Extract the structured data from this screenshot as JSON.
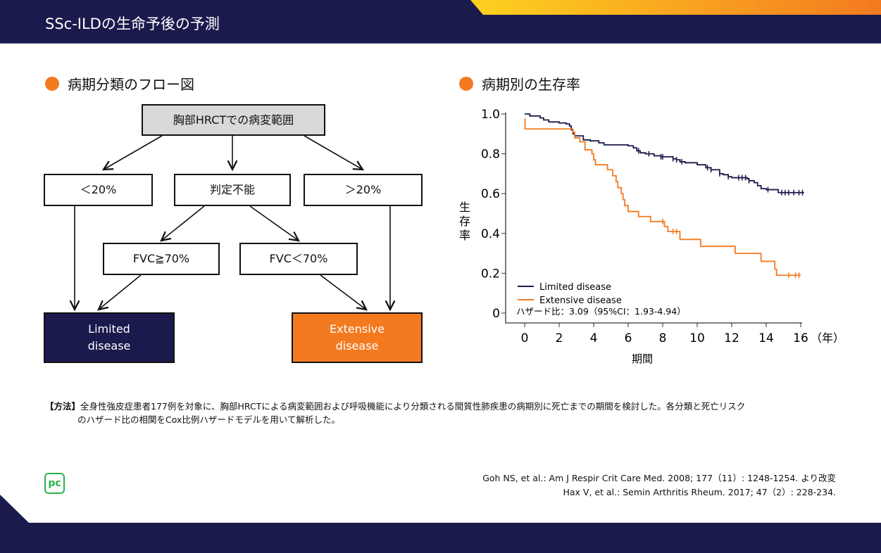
{
  "header": {
    "title": "SSc-ILDの生命予後の予測"
  },
  "flow": {
    "heading": "病期分類のフロー図",
    "top": "胸部HRCTでの病変範囲",
    "lt20": "＜20%",
    "indet": "判定不能",
    "gt20": "＞20%",
    "fvc_ge70": "FVC≧70%",
    "fvc_lt70": "FVC＜70%",
    "limited": "Limited disease",
    "extensive": "Extensive disease"
  },
  "chart_heading": "病期別の生存率",
  "chart_data": {
    "type": "line",
    "step": true,
    "ylabel": "生存率",
    "xlabel": "期間",
    "x_unit": "（年）",
    "xlim": [
      0,
      16
    ],
    "ylim": [
      0,
      1.0
    ],
    "xticks": [
      "0",
      "2",
      "4",
      "6",
      "8",
      "10",
      "12",
      "14",
      "16"
    ],
    "yticks": [
      "0",
      "0.2",
      "0.4",
      "0.6",
      "0.8",
      "1.0"
    ],
    "legend": "bottom-left",
    "annotation": "ハザード比：3.09（95%CI：1.93-4.94）",
    "series": [
      {
        "name": "Limited disease",
        "color": "#1b1a4c",
        "x": [
          0,
          0.3,
          0.9,
          1.1,
          1.4,
          2.0,
          2.4,
          2.6,
          2.7,
          2.8,
          2.9,
          3.4,
          3.8,
          4.3,
          4.6,
          6.0,
          6.3,
          6.5,
          6.7,
          7.0,
          7.5,
          7.9,
          8.6,
          8.8,
          9.0,
          9.3,
          10.0,
          10.5,
          10.8,
          11.3,
          11.5,
          11.8,
          12.0,
          12.9,
          13.0,
          13.3,
          13.5,
          13.7,
          14.0,
          14.7,
          16.2
        ],
        "y": [
          1.0,
          0.99,
          0.98,
          0.97,
          0.96,
          0.955,
          0.95,
          0.94,
          0.92,
          0.9,
          0.89,
          0.87,
          0.865,
          0.855,
          0.845,
          0.84,
          0.83,
          0.815,
          0.805,
          0.8,
          0.79,
          0.785,
          0.775,
          0.77,
          0.76,
          0.755,
          0.745,
          0.73,
          0.72,
          0.7,
          0.695,
          0.685,
          0.68,
          0.675,
          0.665,
          0.655,
          0.64,
          0.625,
          0.62,
          0.605,
          0.605
        ],
        "censored": [
          6.6,
          7.2,
          7.9,
          8.0,
          8.6,
          8.8,
          9.1,
          10.6,
          10.8,
          11.3,
          11.8,
          12.4,
          12.6,
          12.8,
          13.0,
          14.1,
          14.9,
          15.1,
          15.3,
          15.6,
          15.9,
          16.1
        ]
      },
      {
        "name": "Extensive disease",
        "color": "#f47a20",
        "x": [
          0,
          0.02,
          2.8,
          2.9,
          3.2,
          3.5,
          3.9,
          4.0,
          4.1,
          4.8,
          5.1,
          5.3,
          5.4,
          5.6,
          5.7,
          5.8,
          6.0,
          6.6,
          7.3,
          8.1,
          8.3,
          9.0,
          10.2,
          12.2,
          13.7,
          14.5,
          14.6,
          16.0
        ],
        "y": [
          0.975,
          0.925,
          0.91,
          0.88,
          0.86,
          0.82,
          0.8,
          0.77,
          0.745,
          0.72,
          0.69,
          0.66,
          0.63,
          0.6,
          0.57,
          0.54,
          0.51,
          0.485,
          0.46,
          0.435,
          0.41,
          0.37,
          0.335,
          0.3,
          0.26,
          0.22,
          0.19,
          0.19
        ],
        "censored": [
          8.0,
          8.6,
          8.8,
          15.3,
          15.7,
          15.9
        ]
      }
    ]
  },
  "method": {
    "label": "【方法】",
    "text1": "全身性強皮症患者177例を対象に、胸部HRCTによる病変範囲および呼吸機能により分類される間質性肺疾患の病期別に死亡までの期間を検討した。各分類と死亡リスク",
    "text2": "のハザード比の相関をCox比例ハザードモデルを用いて解析した。"
  },
  "refs": [
    "Goh NS, et al.: Am J Respir Crit Care Med. 2008; 177（11）: 1248-1254. より改変",
    "Hax V, et al.: Semin Arthritis Rheum. 2017; 47（2）: 228-234."
  ],
  "logo": "PC"
}
